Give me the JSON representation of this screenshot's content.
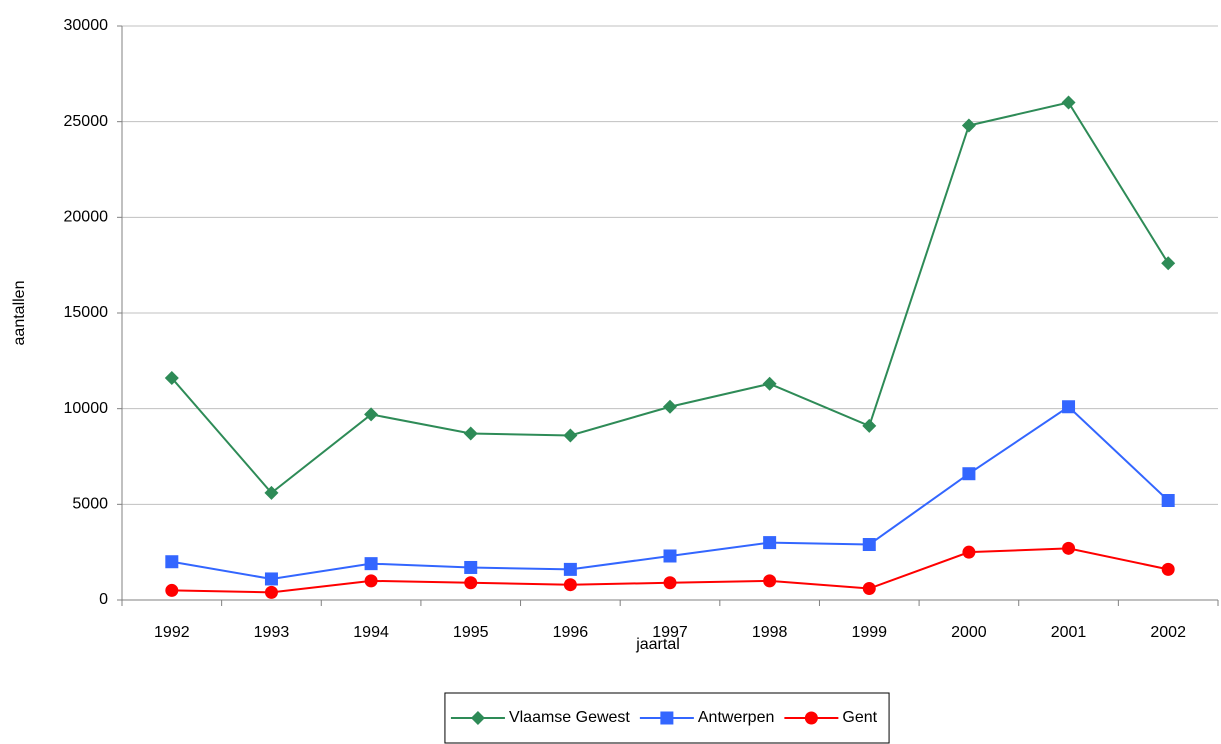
{
  "chart_data": {
    "type": "line",
    "x_label": "jaartal",
    "y_label": "aantallen",
    "categories": [
      "1992",
      "1993",
      "1994",
      "1995",
      "1996",
      "1997",
      "1998",
      "1999",
      "2000",
      "2001",
      "2002"
    ],
    "series": [
      {
        "name": "Vlaamse Gewest",
        "color": "#2e8b57",
        "marker": "diamond",
        "values": [
          11600,
          5600,
          9700,
          8700,
          8600,
          10100,
          11300,
          9100,
          24800,
          26000,
          17600
        ]
      },
      {
        "name": "Antwerpen",
        "color": "#3366ff",
        "marker": "square",
        "values": [
          2000,
          1100,
          1900,
          1700,
          1600,
          2300,
          3000,
          2900,
          6600,
          10100,
          5200
        ]
      },
      {
        "name": "Gent",
        "color": "#ff0000",
        "marker": "circle",
        "values": [
          500,
          400,
          1000,
          900,
          800,
          900,
          1000,
          600,
          2500,
          2700,
          1600
        ]
      }
    ],
    "ylim": [
      0,
      30000
    ],
    "yticks": [
      0,
      5000,
      10000,
      15000,
      20000,
      25000,
      30000
    ],
    "grid": true,
    "legend": "bottom"
  }
}
